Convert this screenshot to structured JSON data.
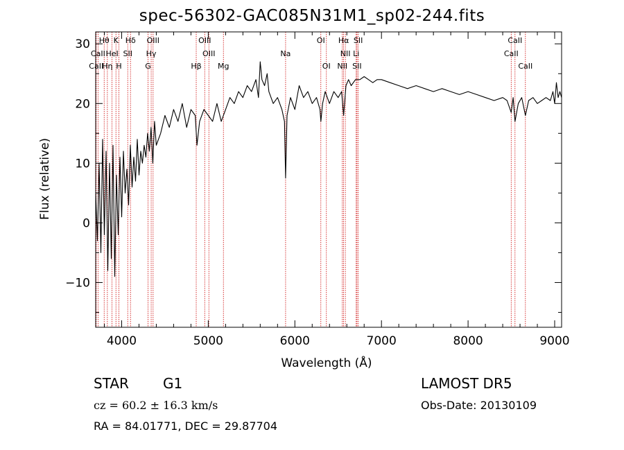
{
  "page": {
    "title": "spec-56302-GAC085N31M1_sp02-244.fits",
    "object_type": "STAR",
    "subclass": "G1",
    "survey": "LAMOST DR5",
    "cz": "cz = 60.2 ± 16.3 km/s",
    "obs_date": "Obs-Date: 20130109",
    "radec": "RA =  84.01771, DEC =  29.87704"
  },
  "chart_data": {
    "type": "line",
    "title": "spec-56302-GAC085N31M1_sp02-244.fits",
    "xlabel": "Wavelength (Å)",
    "ylabel": "Flux (relative)",
    "xlim": [
      3700,
      9080
    ],
    "ylim": [
      -17.5,
      32
    ],
    "x_ticks": [
      4000,
      5000,
      6000,
      7000,
      8000,
      9000
    ],
    "y_ticks": [
      -10,
      0,
      10,
      20,
      30
    ],
    "grid": false,
    "line_color": "#000000",
    "marker_color": "#cc0000",
    "series": [
      {
        "x": [
          3700,
          3720,
          3740,
          3760,
          3780,
          3800,
          3820,
          3840,
          3860,
          3880,
          3900,
          3920,
          3940,
          3960,
          3980,
          4000,
          4020,
          4040,
          4060,
          4080,
          4100,
          4120,
          4140,
          4160,
          4180,
          4200,
          4220,
          4240,
          4260,
          4280,
          4300,
          4320,
          4340,
          4360,
          4380,
          4400,
          4450,
          4500,
          4550,
          4600,
          4650,
          4700,
          4750,
          4800,
          4850,
          4870,
          4900,
          4950,
          5000,
          5050,
          5100,
          5150,
          5200,
          5250,
          5300,
          5350,
          5400,
          5450,
          5500,
          5550,
          5580,
          5600,
          5620,
          5650,
          5680,
          5700,
          5750,
          5800,
          5850,
          5880,
          5893,
          5910,
          5950,
          6000,
          6050,
          6100,
          6150,
          6200,
          6250,
          6290,
          6300,
          6320,
          6350,
          6400,
          6450,
          6500,
          6540,
          6563,
          6590,
          6620,
          6650,
          6700,
          6750,
          6800,
          6850,
          6900,
          6950,
          7000,
          7100,
          7200,
          7300,
          7400,
          7500,
          7600,
          7700,
          7800,
          7900,
          8000,
          8100,
          8200,
          8300,
          8400,
          8450,
          8498,
          8520,
          8542,
          8580,
          8620,
          8662,
          8700,
          8750,
          8800,
          8850,
          8900,
          8950,
          8980,
          9000,
          9020,
          9040,
          9060,
          9080
        ],
        "y": [
          5,
          -3,
          10,
          -5,
          14,
          -2,
          12,
          -8,
          10,
          -6,
          13,
          -9,
          8,
          -2,
          11,
          1,
          12,
          5,
          9,
          3,
          13,
          6,
          11,
          7,
          14,
          8,
          12,
          10,
          13,
          11,
          15,
          12,
          16,
          10,
          17,
          13,
          15,
          18,
          16,
          19,
          17,
          20,
          16,
          19,
          18,
          13,
          17,
          19,
          18,
          17,
          20,
          17,
          19,
          21,
          20,
          22,
          21,
          23,
          22,
          24,
          21,
          27,
          24,
          23,
          25,
          22,
          20,
          21,
          19,
          17,
          7.5,
          18,
          21,
          19,
          23,
          21,
          22,
          20,
          21,
          19,
          17,
          20,
          22,
          20,
          22,
          21,
          22,
          18,
          23,
          24,
          23,
          24,
          24,
          24.5,
          24,
          23.5,
          24,
          24,
          23.5,
          23,
          22.5,
          23,
          22.5,
          22,
          22.5,
          22,
          21.5,
          22,
          21.5,
          21,
          20.5,
          21,
          20.5,
          18.5,
          21,
          17,
          20,
          21,
          18,
          20.5,
          21,
          20,
          20.5,
          21,
          20.5,
          22,
          20,
          23.5,
          21,
          22,
          21
        ]
      }
    ],
    "line_markers": [
      {
        "label": "Hθ",
        "x": 3798,
        "row": 1
      },
      {
        "label": "K",
        "x": 3934,
        "row": 1
      },
      {
        "label": "Hδ",
        "x": 4102,
        "row": 1
      },
      {
        "label": "OIII",
        "x": 4363,
        "row": 1
      },
      {
        "label": "OIII",
        "x": 4959,
        "row": 1
      },
      {
        "label": "OI",
        "x": 6300,
        "row": 1
      },
      {
        "label": "Hα",
        "x": 6563,
        "row": 1
      },
      {
        "label": "SII",
        "x": 6731,
        "row": 1
      },
      {
        "label": "CaII",
        "x": 8542,
        "row": 1
      },
      {
        "label": "CaII",
        "x": 3727,
        "row": 2
      },
      {
        "label": "HeI",
        "x": 3889,
        "row": 2
      },
      {
        "label": "SII",
        "x": 4070,
        "row": 2
      },
      {
        "label": "Hγ",
        "x": 4341,
        "row": 2
      },
      {
        "label": "OIII",
        "x": 5007,
        "row": 2
      },
      {
        "label": "Na",
        "x": 5893,
        "row": 2
      },
      {
        "label": "NII",
        "x": 6583,
        "row": 2
      },
      {
        "label": "Li",
        "x": 6708,
        "row": 2
      },
      {
        "label": "CaII",
        "x": 8498,
        "row": 2
      },
      {
        "label": "CaII",
        "x": 3706,
        "row": 3
      },
      {
        "label": "Hη",
        "x": 3835,
        "row": 3
      },
      {
        "label": "H",
        "x": 3968,
        "row": 3
      },
      {
        "label": "G",
        "x": 4305,
        "row": 3
      },
      {
        "label": "Hβ",
        "x": 4861,
        "row": 3
      },
      {
        "label": "Mg",
        "x": 5175,
        "row": 3
      },
      {
        "label": "OI",
        "x": 6364,
        "row": 3
      },
      {
        "label": "NII",
        "x": 6548,
        "row": 3
      },
      {
        "label": "SII",
        "x": 6717,
        "row": 3
      },
      {
        "label": "CaII",
        "x": 8662,
        "row": 3
      }
    ]
  }
}
